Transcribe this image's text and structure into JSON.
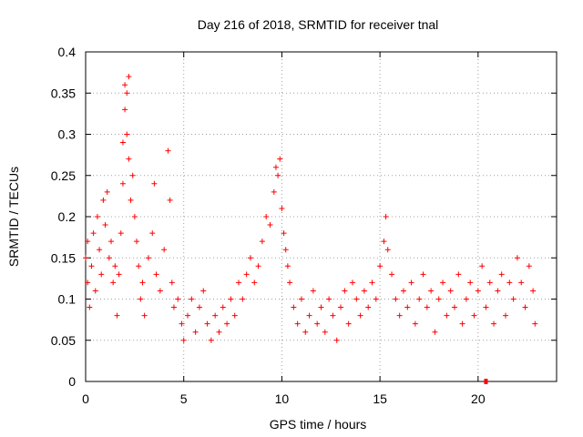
{
  "chart_data": {
    "type": "scatter",
    "title": "Day 216 of 2018, SRMTID for receiver tnal",
    "xlabel": "GPS time / hours",
    "ylabel": "SRMTID / TECUs",
    "xlim": [
      0,
      24
    ],
    "ylim": [
      0,
      0.4
    ],
    "xticks": [
      0,
      5,
      10,
      15,
      20
    ],
    "xtick_labels": [
      "0",
      "5",
      "10",
      "15",
      "20"
    ],
    "yticks": [
      0,
      0.05,
      0.1,
      0.15,
      0.2,
      0.25,
      0.3,
      0.35,
      0.4
    ],
    "ytick_labels": [
      "0",
      "0.05",
      "0.1",
      "0.15",
      "0.2",
      "0.25",
      "0.3",
      "0.35",
      "0.4"
    ],
    "grid": true,
    "marker": "plus",
    "color": "#ff0000",
    "series": [
      {
        "name": "SRMTID",
        "points": [
          [
            0.0,
            0.15
          ],
          [
            0.1,
            0.12
          ],
          [
            0.1,
            0.17
          ],
          [
            0.2,
            0.09
          ],
          [
            0.3,
            0.14
          ],
          [
            0.4,
            0.18
          ],
          [
            0.5,
            0.11
          ],
          [
            0.6,
            0.2
          ],
          [
            0.7,
            0.16
          ],
          [
            0.8,
            0.13
          ],
          [
            0.9,
            0.22
          ],
          [
            1.0,
            0.19
          ],
          [
            1.1,
            0.23
          ],
          [
            1.2,
            0.15
          ],
          [
            1.3,
            0.17
          ],
          [
            1.4,
            0.12
          ],
          [
            1.5,
            0.14
          ],
          [
            1.6,
            0.08
          ],
          [
            1.7,
            0.13
          ],
          [
            1.8,
            0.18
          ],
          [
            1.9,
            0.29
          ],
          [
            1.9,
            0.24
          ],
          [
            2.0,
            0.33
          ],
          [
            2.0,
            0.36
          ],
          [
            2.1,
            0.35
          ],
          [
            2.1,
            0.3
          ],
          [
            2.2,
            0.37
          ],
          [
            2.2,
            0.27
          ],
          [
            2.3,
            0.22
          ],
          [
            2.4,
            0.25
          ],
          [
            2.5,
            0.2
          ],
          [
            2.6,
            0.17
          ],
          [
            2.7,
            0.14
          ],
          [
            2.8,
            0.1
          ],
          [
            2.9,
            0.12
          ],
          [
            3.0,
            0.08
          ],
          [
            3.2,
            0.15
          ],
          [
            3.4,
            0.18
          ],
          [
            3.5,
            0.24
          ],
          [
            3.6,
            0.13
          ],
          [
            3.8,
            0.11
          ],
          [
            4.0,
            0.16
          ],
          [
            4.2,
            0.28
          ],
          [
            4.3,
            0.22
          ],
          [
            4.4,
            0.12
          ],
          [
            4.5,
            0.09
          ],
          [
            4.7,
            0.1
          ],
          [
            4.9,
            0.07
          ],
          [
            5.0,
            0.05
          ],
          [
            5.2,
            0.08
          ],
          [
            5.4,
            0.1
          ],
          [
            5.6,
            0.06
          ],
          [
            5.8,
            0.09
          ],
          [
            6.0,
            0.11
          ],
          [
            6.2,
            0.07
          ],
          [
            6.4,
            0.05
          ],
          [
            6.6,
            0.08
          ],
          [
            6.8,
            0.06
          ],
          [
            7.0,
            0.09
          ],
          [
            7.2,
            0.07
          ],
          [
            7.4,
            0.1
          ],
          [
            7.6,
            0.08
          ],
          [
            7.8,
            0.12
          ],
          [
            8.0,
            0.1
          ],
          [
            8.2,
            0.13
          ],
          [
            8.4,
            0.15
          ],
          [
            8.6,
            0.12
          ],
          [
            8.8,
            0.14
          ],
          [
            9.0,
            0.17
          ],
          [
            9.2,
            0.2
          ],
          [
            9.4,
            0.19
          ],
          [
            9.6,
            0.23
          ],
          [
            9.7,
            0.26
          ],
          [
            9.8,
            0.25
          ],
          [
            9.9,
            0.27
          ],
          [
            10.0,
            0.21
          ],
          [
            10.1,
            0.18
          ],
          [
            10.2,
            0.16
          ],
          [
            10.3,
            0.14
          ],
          [
            10.4,
            0.12
          ],
          [
            10.6,
            0.09
          ],
          [
            10.8,
            0.07
          ],
          [
            11.0,
            0.1
          ],
          [
            11.2,
            0.06
          ],
          [
            11.4,
            0.08
          ],
          [
            11.6,
            0.11
          ],
          [
            11.8,
            0.07
          ],
          [
            12.0,
            0.09
          ],
          [
            12.2,
            0.06
          ],
          [
            12.4,
            0.1
          ],
          [
            12.6,
            0.08
          ],
          [
            12.8,
            0.05
          ],
          [
            13.0,
            0.09
          ],
          [
            13.2,
            0.11
          ],
          [
            13.4,
            0.07
          ],
          [
            13.6,
            0.12
          ],
          [
            13.8,
            0.1
          ],
          [
            14.0,
            0.08
          ],
          [
            14.2,
            0.11
          ],
          [
            14.4,
            0.09
          ],
          [
            14.6,
            0.12
          ],
          [
            14.8,
            0.1
          ],
          [
            15.0,
            0.14
          ],
          [
            15.2,
            0.17
          ],
          [
            15.3,
            0.2
          ],
          [
            15.4,
            0.16
          ],
          [
            15.6,
            0.13
          ],
          [
            15.8,
            0.1
          ],
          [
            16.0,
            0.08
          ],
          [
            16.2,
            0.11
          ],
          [
            16.4,
            0.09
          ],
          [
            16.6,
            0.12
          ],
          [
            16.8,
            0.07
          ],
          [
            17.0,
            0.1
          ],
          [
            17.2,
            0.13
          ],
          [
            17.4,
            0.09
          ],
          [
            17.6,
            0.11
          ],
          [
            17.8,
            0.06
          ],
          [
            18.0,
            0.1
          ],
          [
            18.2,
            0.12
          ],
          [
            18.4,
            0.08
          ],
          [
            18.6,
            0.11
          ],
          [
            18.8,
            0.09
          ],
          [
            19.0,
            0.13
          ],
          [
            19.2,
            0.07
          ],
          [
            19.4,
            0.1
          ],
          [
            19.6,
            0.12
          ],
          [
            19.8,
            0.08
          ],
          [
            20.0,
            0.11
          ],
          [
            20.2,
            0.14
          ],
          [
            20.4,
            0.09
          ],
          [
            20.6,
            0.12
          ],
          [
            20.8,
            0.07
          ],
          [
            21.0,
            0.11
          ],
          [
            21.2,
            0.13
          ],
          [
            21.4,
            0.08
          ],
          [
            21.6,
            0.12
          ],
          [
            21.8,
            0.1
          ],
          [
            22.0,
            0.15
          ],
          [
            22.2,
            0.12
          ],
          [
            22.4,
            0.09
          ],
          [
            22.6,
            0.14
          ],
          [
            22.8,
            0.11
          ],
          [
            22.9,
            0.07
          ]
        ]
      }
    ],
    "annotations": [
      {
        "type": "filled-square",
        "x": 20.4,
        "y": 0.0
      }
    ]
  }
}
